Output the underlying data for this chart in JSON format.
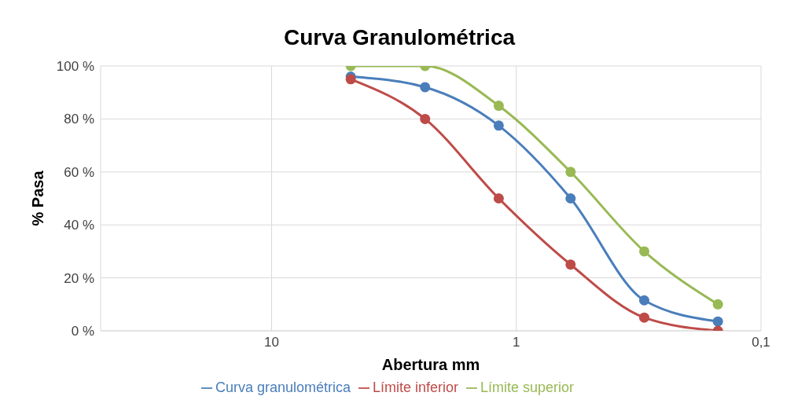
{
  "chart_data": {
    "type": "line",
    "title": "Curva Granulométrica",
    "xlabel": "Abertura mm",
    "ylabel": "% Pasa",
    "x": [
      4.75,
      2.36,
      1.18,
      0.6,
      0.3,
      0.15
    ],
    "series": [
      {
        "name": "Curva granulométrica",
        "color": "#4a7ebb",
        "values": [
          96,
          92,
          77.5,
          50,
          11.5,
          3.5
        ]
      },
      {
        "name": "Límite inferior",
        "color": "#be4b48",
        "values": [
          95,
          80,
          50,
          25,
          5,
          0
        ]
      },
      {
        "name": "Límite superior",
        "color": "#98b954",
        "values": [
          100,
          100,
          85,
          60,
          30,
          10
        ]
      }
    ],
    "log": "x",
    "xlim": [
      50,
      0.1
    ],
    "xticks": [
      10,
      1,
      {
        "value": 0.1,
        "label": "0,1"
      }
    ],
    "ylim": [
      0,
      100
    ],
    "yticks": [
      {
        "value": 0,
        "label": "0 %"
      },
      {
        "value": 20,
        "label": "20 %"
      },
      {
        "value": 40,
        "label": "40 %"
      },
      {
        "value": 60,
        "label": "60 %"
      },
      {
        "value": 80,
        "label": "80 %"
      },
      {
        "value": 100,
        "label": "100 %"
      }
    ],
    "grid": true,
    "legend": "bottom",
    "marker": "circle",
    "line_style": "solid"
  }
}
